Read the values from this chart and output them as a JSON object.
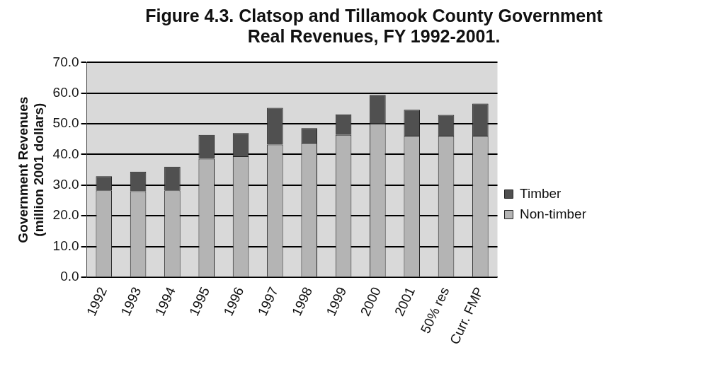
{
  "chart_data": {
    "type": "bar",
    "title": "Figure 4.3.  Clatsop and Tillamook County Government Real Revenues, FY 1992-2001.",
    "ylabel": "Government Revenues (million 2001 dollars)",
    "categories": [
      "1992",
      "1993",
      "1994",
      "1995",
      "1996",
      "1997",
      "1998",
      "1999",
      "2000",
      "2001",
      "50% res",
      "Curr. FMP"
    ],
    "stacked": true,
    "series": [
      {
        "name": "Non-timber",
        "color": "#b4b4b4",
        "values": [
          28.3,
          28.0,
          28.3,
          38.6,
          39.4,
          43.2,
          43.8,
          46.4,
          50.1,
          46.1,
          46.1,
          46.1
        ]
      },
      {
        "name": "Timber",
        "color": "#505050",
        "values": [
          4.6,
          6.4,
          7.7,
          7.8,
          7.6,
          12.0,
          4.8,
          6.7,
          9.3,
          8.5,
          6.8,
          10.5
        ]
      }
    ],
    "ylim": [
      0,
      70
    ],
    "yticks": [
      {
        "value": 0,
        "label": "0.0"
      },
      {
        "value": 10,
        "label": "10.0"
      },
      {
        "value": 20,
        "label": "20.0"
      },
      {
        "value": 30,
        "label": "30.0"
      },
      {
        "value": 40,
        "label": "40.0"
      },
      {
        "value": 50,
        "label": "50.0"
      },
      {
        "value": 60,
        "label": "60.0"
      },
      {
        "value": 70,
        "label": "70.0"
      }
    ],
    "grid": "y",
    "legend": "right"
  }
}
